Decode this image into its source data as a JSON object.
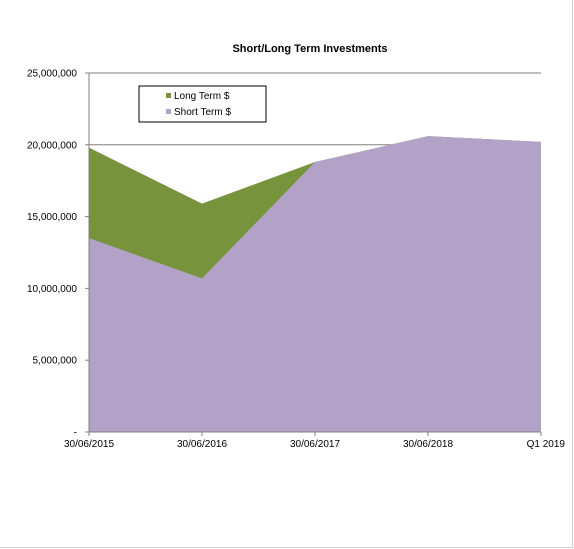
{
  "chart_data": {
    "type": "area",
    "stacked": true,
    "title": "Short/Long Term Investments",
    "xlabel": "",
    "ylabel": "",
    "categories": [
      "30/06/2015",
      "30/06/2016",
      "30/06/2017",
      "30/06/2018",
      "Q1 2019"
    ],
    "series": [
      {
        "name": "Long Term $",
        "color": "#77933c",
        "values": [
          6300000,
          5200000,
          0,
          0,
          0
        ]
      },
      {
        "name": "Short Term $",
        "color": "#b3a2c7",
        "values": [
          13500000,
          10700000,
          18800000,
          20600000,
          20200000
        ]
      }
    ],
    "ylim": [
      0,
      25000000
    ],
    "yticks": [
      0,
      5000000,
      10000000,
      15000000,
      20000000,
      25000000
    ],
    "ytick_labels": [
      "-",
      "5,000,000",
      "10,000,000",
      "15,000,000",
      "20,000,000",
      "25,000,000"
    ],
    "grid": true,
    "legend_position": "top-left"
  }
}
